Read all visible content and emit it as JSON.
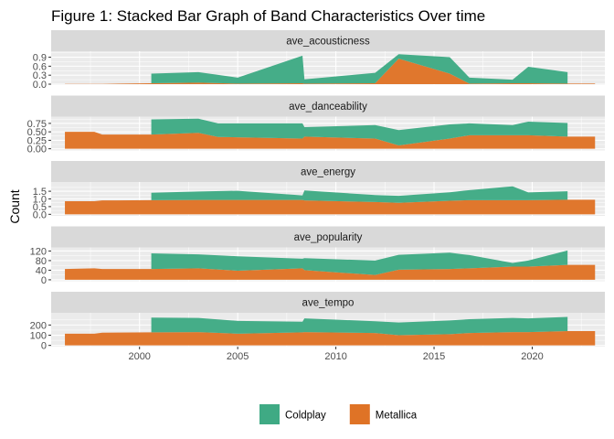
{
  "chart_data": {
    "type": "area",
    "stacked": true,
    "title": "Figure 1: Stacked Bar Graph of Band Characteristics Over time",
    "xlabel": "",
    "ylabel": "Count",
    "xlim": [
      1995.5,
      2023.7
    ],
    "x_ticks": [
      2000,
      2005,
      2010,
      2015,
      2020
    ],
    "grid": true,
    "legend_position": "bottom",
    "series_styles": [
      {
        "name": "Coldplay",
        "color": "#3faa84"
      },
      {
        "name": "Metallica",
        "color": "#df7326"
      }
    ],
    "facets": [
      {
        "name": "ave_acousticness",
        "ylim": [
          -0.03,
          1.1
        ],
        "y_ticks": [
          0.0,
          0.3,
          0.6,
          0.9
        ],
        "y_tick_labels": [
          "0.0",
          "0.3",
          "0.6",
          "0.9"
        ],
        "series": [
          {
            "name": "Metallica",
            "x": [
              1996.2,
              1997.7,
              1998.1,
              2000.6,
              2003.0,
              2005.0,
              2008.3,
              2008.4,
              2012.0,
              2013.2,
              2015.8,
              2016.8,
              2019.0,
              2019.8,
              2021.8,
              2023.2
            ],
            "y": [
              0.01,
              0.01,
              0.01,
              0.03,
              0.05,
              0.02,
              0.03,
              0.02,
              0.03,
              0.85,
              0.35,
              0.02,
              0.03,
              0.03,
              0.02,
              0.02
            ]
          },
          {
            "name": "Coldplay",
            "x": [
              2000.6,
              2003.0,
              2005.0,
              2008.3,
              2008.4,
              2012.0,
              2013.2,
              2015.8,
              2016.8,
              2019.0,
              2019.8,
              2021.8
            ],
            "y": [
              0.32,
              0.35,
              0.2,
              0.92,
              0.14,
              0.35,
              0.15,
              0.55,
              0.2,
              0.12,
              0.55,
              0.38
            ]
          }
        ]
      },
      {
        "name": "ave_danceability",
        "ylim": [
          -0.05,
          0.95
        ],
        "y_ticks": [
          0.0,
          0.25,
          0.5,
          0.75
        ],
        "y_tick_labels": [
          "0.00",
          "0.25",
          "0.50",
          "0.75"
        ],
        "series": [
          {
            "name": "Metallica",
            "x": [
              1996.2,
              1997.7,
              1998.1,
              2000.6,
              2003.0,
              2004.0,
              2008.3,
              2008.4,
              2012.0,
              2013.2,
              2015.8,
              2016.8,
              2019.0,
              2019.8,
              2021.8,
              2023.2
            ],
            "y": [
              0.5,
              0.5,
              0.42,
              0.42,
              0.47,
              0.35,
              0.3,
              0.36,
              0.3,
              0.1,
              0.3,
              0.4,
              0.4,
              0.4,
              0.36,
              0.36
            ]
          },
          {
            "name": "Coldplay",
            "x": [
              2000.6,
              2003.0,
              2004.0,
              2008.3,
              2008.4,
              2012.0,
              2013.2,
              2015.8,
              2016.8,
              2019.0,
              2019.8,
              2021.8
            ],
            "y": [
              0.45,
              0.42,
              0.4,
              0.45,
              0.28,
              0.4,
              0.45,
              0.42,
              0.35,
              0.3,
              0.4,
              0.4
            ]
          }
        ]
      },
      {
        "name": "ave_energy",
        "ylim": [
          -0.1,
          2.1
        ],
        "y_ticks": [
          0.0,
          0.5,
          1.0,
          1.5
        ],
        "y_tick_labels": [
          "0.0",
          "0.5",
          "1.0",
          "1.5"
        ],
        "series": [
          {
            "name": "Metallica",
            "x": [
              1996.2,
              1997.7,
              1998.1,
              2000.6,
              2003.0,
              2005.0,
              2008.3,
              2008.4,
              2012.0,
              2013.2,
              2015.8,
              2016.8,
              2019.0,
              2019.8,
              2021.8,
              2023.2
            ],
            "y": [
              0.85,
              0.85,
              0.9,
              0.92,
              0.93,
              0.93,
              0.93,
              0.9,
              0.8,
              0.75,
              0.88,
              0.92,
              0.92,
              0.92,
              0.95,
              0.95
            ]
          },
          {
            "name": "Coldplay",
            "x": [
              2000.6,
              2003.0,
              2005.0,
              2008.3,
              2008.4,
              2012.0,
              2013.2,
              2015.8,
              2016.8,
              2019.0,
              2019.8,
              2021.8
            ],
            "y": [
              0.48,
              0.55,
              0.6,
              0.3,
              0.65,
              0.45,
              0.45,
              0.55,
              0.65,
              0.9,
              0.5,
              0.55
            ]
          }
        ]
      },
      {
        "name": "ave_popularity",
        "ylim": [
          -6,
          135
        ],
        "y_ticks": [
          0,
          40,
          80,
          120
        ],
        "y_tick_labels": [
          "0",
          "40",
          "80",
          "120"
        ],
        "series": [
          {
            "name": "Metallica",
            "x": [
              1996.2,
              1997.7,
              1998.1,
              2000.6,
              2003.0,
              2005.0,
              2008.3,
              2008.4,
              2012.0,
              2013.2,
              2015.8,
              2016.8,
              2019.0,
              2019.8,
              2021.8,
              2023.2
            ],
            "y": [
              45,
              48,
              45,
              45,
              48,
              38,
              48,
              40,
              20,
              42,
              45,
              48,
              55,
              55,
              62,
              62
            ]
          },
          {
            "name": "Coldplay",
            "x": [
              2000.6,
              2003.0,
              2005.0,
              2008.3,
              2008.4,
              2012.0,
              2013.2,
              2015.8,
              2016.8,
              2019.0,
              2019.8,
              2021.8
            ],
            "y": [
              65,
              58,
              60,
              40,
              50,
              60,
              62,
              68,
              55,
              15,
              25,
              60
            ]
          }
        ]
      },
      {
        "name": "ave_tempo",
        "ylim": [
          -12,
          320
        ],
        "y_ticks": [
          0,
          100,
          200
        ],
        "y_tick_labels": [
          "0",
          "100",
          "200"
        ],
        "series": [
          {
            "name": "Metallica",
            "x": [
              1996.2,
              1997.7,
              1998.1,
              2000.6,
              2003.0,
              2005.0,
              2008.3,
              2008.4,
              2012.0,
              2013.2,
              2015.8,
              2016.8,
              2019.0,
              2019.8,
              2021.8,
              2023.2
            ],
            "y": [
              115,
              115,
              125,
              128,
              130,
              115,
              128,
              130,
              122,
              100,
              110,
              122,
              130,
              130,
              140,
              140
            ]
          },
          {
            "name": "Coldplay",
            "x": [
              2000.6,
              2003.0,
              2005.0,
              2008.3,
              2008.4,
              2012.0,
              2013.2,
              2015.8,
              2016.8,
              2019.0,
              2019.8,
              2021.8
            ],
            "y": [
              145,
              140,
              125,
              105,
              135,
              115,
              125,
              135,
              135,
              140,
              135,
              140
            ]
          }
        ]
      }
    ]
  }
}
